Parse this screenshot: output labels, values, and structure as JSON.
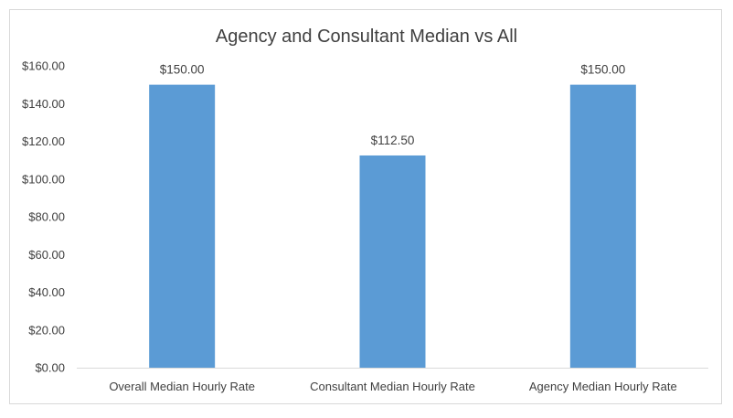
{
  "chart_data": {
    "type": "bar",
    "title": "Agency and Consultant Median vs All",
    "xlabel": "",
    "ylabel": "",
    "categories": [
      "Overall Median Hourly Rate",
      "Consultant Median Hourly Rate",
      "Agency Median Hourly Rate"
    ],
    "values": [
      150.0,
      112.5,
      150.0
    ],
    "data_labels": [
      "$150.00",
      "$112.50",
      "$150.00"
    ],
    "ylim": [
      0,
      160
    ],
    "y_ticks": [
      0,
      20,
      40,
      60,
      80,
      100,
      120,
      140,
      160
    ],
    "y_tick_labels": [
      "$0.00",
      "$20.00",
      "$40.00",
      "$60.00",
      "$80.00",
      "$100.00",
      "$120.00",
      "$140.00",
      "$160.00"
    ],
    "grid": false,
    "legend": "none",
    "colors": {
      "bar": "#5b9bd5",
      "text": "#404040",
      "axis": "#d9d9d9"
    }
  }
}
